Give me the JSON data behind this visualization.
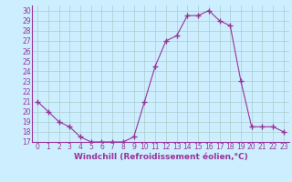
{
  "hours": [
    0,
    1,
    2,
    3,
    4,
    5,
    6,
    7,
    8,
    9,
    10,
    11,
    12,
    13,
    14,
    15,
    16,
    17,
    18,
    19,
    20,
    21,
    22,
    23
  ],
  "values": [
    21,
    20,
    19,
    18.5,
    17.5,
    17,
    17,
    17,
    17,
    17.5,
    21,
    24.5,
    27,
    27.5,
    29.5,
    29.5,
    30,
    29,
    28.5,
    23,
    18.5,
    18.5,
    18.5,
    18
  ],
  "line_color": "#993399",
  "marker": "+",
  "marker_size": 4,
  "marker_linewidth": 1.0,
  "xlabel": "Windchill (Refroidissement éolien,°C)",
  "xlabel_color": "#993399",
  "bg_color": "#cceeff",
  "grid_color": "#aacccc",
  "ylim": [
    17,
    30.5
  ],
  "xlim": [
    -0.5,
    23.5
  ],
  "yticks": [
    17,
    18,
    19,
    20,
    21,
    22,
    23,
    24,
    25,
    26,
    27,
    28,
    29,
    30
  ],
  "xticks": [
    0,
    1,
    2,
    3,
    4,
    5,
    6,
    7,
    8,
    9,
    10,
    11,
    12,
    13,
    14,
    15,
    16,
    17,
    18,
    19,
    20,
    21,
    22,
    23
  ],
  "tick_color": "#993399",
  "spine_color": "#993399",
  "tick_fontsize": 5.5,
  "xlabel_fontsize": 6.5
}
